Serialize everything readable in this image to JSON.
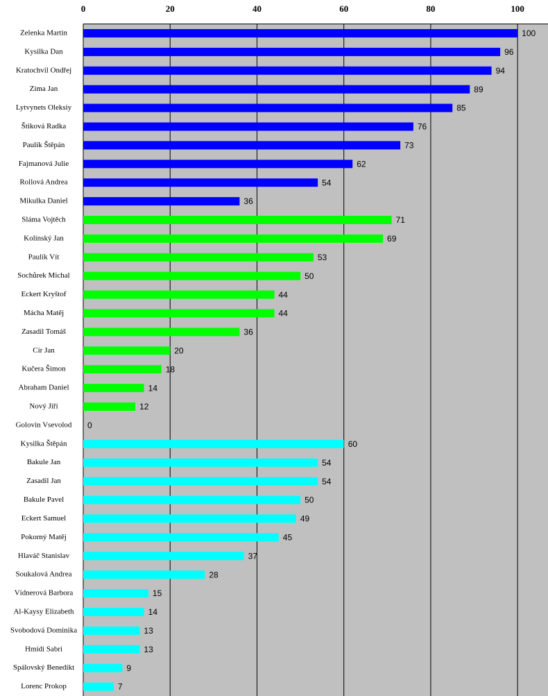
{
  "chart_data": {
    "type": "bar",
    "orientation": "horizontal",
    "categories": [
      "Zelenka Martin",
      "Kysilka Dan",
      "Kratochvíl Ondřej",
      "Zima Jan",
      "Lytvynets Oleksiy",
      "Štiková Radka",
      "Paulík Štěpán",
      "Fajmanová Julie",
      "Rollová Andrea",
      "Mikulka Daniel",
      "Sláma Vojtěch",
      "Kolínský Jan",
      "Paulík Vít",
      "Sochůrek Michal",
      "Eckert Kryštof",
      "Mácha Matěj",
      "Zasadil Tomáš",
      "Cír Jan",
      "Kučera Šimon",
      "Abraham Daniel",
      "Nový Jiří",
      "Golovin Vsevolod",
      "Kysilka Štěpán",
      "Bakule Jan",
      "Zasadil Jan",
      "Bakule Pavel",
      "Eckert Samuel",
      "Pokorný Matěj",
      "Hlaváč Stanislav",
      "Soukalová Andrea",
      "Vídnerová Barbora",
      "Al-Kaysy Elizabeth",
      "Svobodová Dominika",
      "Hmidi Sabri",
      "Spálovský Benedikt",
      "Lorenc Prokop"
    ],
    "values": [
      100,
      96,
      94,
      89,
      85,
      76,
      73,
      62,
      54,
      36,
      71,
      69,
      53,
      50,
      44,
      44,
      36,
      20,
      18,
      14,
      12,
      0,
      60,
      54,
      54,
      50,
      49,
      45,
      37,
      28,
      15,
      14,
      13,
      13,
      9,
      7
    ],
    "colors": [
      "#0000ff",
      "#0000ff",
      "#0000ff",
      "#0000ff",
      "#0000ff",
      "#0000ff",
      "#0000ff",
      "#0000ff",
      "#0000ff",
      "#0000ff",
      "#00ff00",
      "#00ff00",
      "#00ff00",
      "#00ff00",
      "#00ff00",
      "#00ff00",
      "#00ff00",
      "#00ff00",
      "#00ff00",
      "#00ff00",
      "#00ff00",
      "#00ff00",
      "#00ffff",
      "#00ffff",
      "#00ffff",
      "#00ffff",
      "#00ffff",
      "#00ffff",
      "#00ffff",
      "#00ffff",
      "#00ffff",
      "#00ffff",
      "#00ffff",
      "#00ffff",
      "#00ffff",
      "#00ffff"
    ],
    "xlim": [
      0,
      107
    ],
    "xticks": [
      0,
      20,
      40,
      60,
      80,
      100
    ],
    "grid": true,
    "plot_background": "#c0c0c0"
  }
}
